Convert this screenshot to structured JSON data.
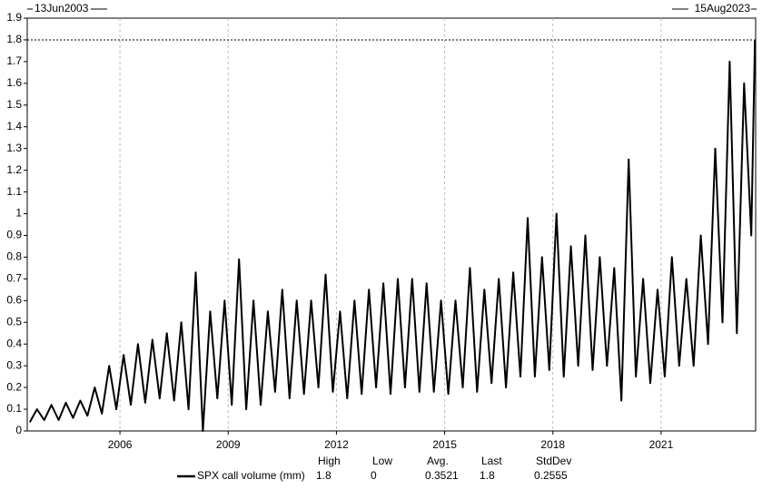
{
  "chart_data": {
    "type": "line",
    "start_label": "13Jun2003",
    "end_label": "15Aug2023",
    "x": [
      2003.5,
      2003.7,
      2003.9,
      2004.1,
      2004.3,
      2004.5,
      2004.7,
      2004.9,
      2005.1,
      2005.3,
      2005.5,
      2005.7,
      2005.9,
      2006.1,
      2006.3,
      2006.5,
      2006.7,
      2006.9,
      2007.1,
      2007.3,
      2007.5,
      2007.7,
      2007.9,
      2008.1,
      2008.3,
      2008.5,
      2008.7,
      2008.9,
      2009.1,
      2009.3,
      2009.5,
      2009.7,
      2009.9,
      2010.1,
      2010.3,
      2010.5,
      2010.7,
      2010.9,
      2011.1,
      2011.3,
      2011.5,
      2011.7,
      2011.9,
      2012.1,
      2012.3,
      2012.5,
      2012.7,
      2012.9,
      2013.1,
      2013.3,
      2013.5,
      2013.7,
      2013.9,
      2014.1,
      2014.3,
      2014.5,
      2014.7,
      2014.9,
      2015.1,
      2015.3,
      2015.5,
      2015.7,
      2015.9,
      2016.1,
      2016.3,
      2016.5,
      2016.7,
      2016.9,
      2017.1,
      2017.3,
      2017.5,
      2017.7,
      2017.9,
      2018.1,
      2018.3,
      2018.5,
      2018.7,
      2018.9,
      2019.1,
      2019.3,
      2019.5,
      2019.7,
      2019.9,
      2020.1,
      2020.3,
      2020.5,
      2020.7,
      2020.9,
      2021.1,
      2021.3,
      2021.5,
      2021.7,
      2021.9,
      2022.1,
      2022.3,
      2022.5,
      2022.7,
      2022.9,
      2023.1,
      2023.3,
      2023.5,
      2023.6
    ],
    "series": [
      {
        "name": "SPX call volume (mm)",
        "color": "#000000",
        "values": [
          0.04,
          0.1,
          0.05,
          0.12,
          0.05,
          0.13,
          0.06,
          0.14,
          0.07,
          0.2,
          0.08,
          0.3,
          0.1,
          0.35,
          0.12,
          0.4,
          0.13,
          0.42,
          0.15,
          0.45,
          0.14,
          0.5,
          0.1,
          0.73,
          0.0,
          0.55,
          0.15,
          0.6,
          0.12,
          0.79,
          0.1,
          0.6,
          0.12,
          0.55,
          0.18,
          0.65,
          0.15,
          0.6,
          0.17,
          0.6,
          0.2,
          0.72,
          0.18,
          0.55,
          0.15,
          0.6,
          0.17,
          0.65,
          0.2,
          0.68,
          0.17,
          0.7,
          0.2,
          0.7,
          0.18,
          0.68,
          0.18,
          0.6,
          0.17,
          0.6,
          0.2,
          0.75,
          0.18,
          0.65,
          0.22,
          0.7,
          0.2,
          0.73,
          0.25,
          0.98,
          0.25,
          0.8,
          0.28,
          1.0,
          0.25,
          0.85,
          0.3,
          0.9,
          0.28,
          0.8,
          0.3,
          0.75,
          0.14,
          1.25,
          0.25,
          0.7,
          0.22,
          0.65,
          0.25,
          0.8,
          0.3,
          0.7,
          0.3,
          0.9,
          0.4,
          1.3,
          0.5,
          1.7,
          0.45,
          1.6,
          0.9,
          1.8
        ]
      }
    ],
    "xlim": [
      2003.43,
      2023.62
    ],
    "xticks": [
      2006,
      2009,
      2012,
      2015,
      2018,
      2021
    ],
    "ylim": [
      0,
      1.9
    ],
    "yticks": [
      0,
      0.1,
      0.2,
      0.3,
      0.4,
      0.5,
      0.6,
      0.7,
      0.8,
      0.9,
      1,
      1.1,
      1.2,
      1.3,
      1.4,
      1.5,
      1.6,
      1.7,
      1.8,
      1.9
    ],
    "grid": true,
    "stats": {
      "headers": [
        "High",
        "Low",
        "Avg.",
        "Last",
        "StdDev"
      ],
      "values": [
        1.8,
        0,
        0.3521,
        1.8,
        0.2555
      ]
    }
  }
}
